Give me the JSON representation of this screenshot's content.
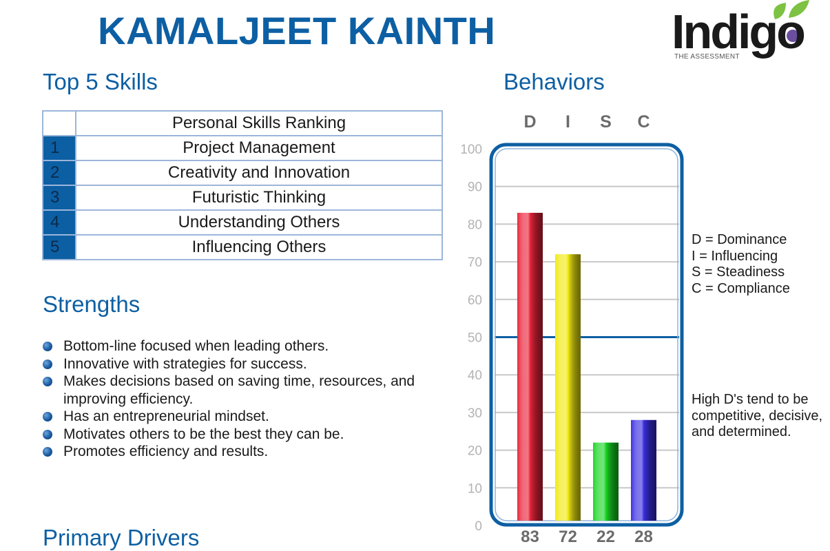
{
  "header": {
    "name": "KAMALJEET KAINTH",
    "logo_word": "Indigo",
    "logo_tagline": "THE ASSESSMENT"
  },
  "skills": {
    "heading": "Top 5 Skills",
    "column_header": "Personal Skills Ranking",
    "items": [
      {
        "rank": "1",
        "label": "Project Management"
      },
      {
        "rank": "2",
        "label": "Creativity and Innovation"
      },
      {
        "rank": "3",
        "label": "Futuristic Thinking"
      },
      {
        "rank": "4",
        "label": "Understanding Others"
      },
      {
        "rank": "5",
        "label": "Influencing Others"
      }
    ]
  },
  "strengths": {
    "heading": "Strengths",
    "items": [
      "Bottom-line focused when leading others.",
      "Innovative with strategies for success.",
      "Makes decisions based on saving time, resources, and improving efficiency.",
      "Has an entrepreneurial mindset.",
      "Motivates others to be the best they can be.",
      "Promotes efficiency and results."
    ]
  },
  "drivers": {
    "heading": "Primary Drivers"
  },
  "behaviors": {
    "heading": "Behaviors",
    "legend": [
      "D = Dominance",
      "I = Influencing",
      "S = Steadiness",
      "C = Compliance"
    ],
    "note": "High D's tend to be competitive, decisive, and determined."
  },
  "chart_data": {
    "type": "bar",
    "categories": [
      "D",
      "I",
      "S",
      "C"
    ],
    "values": [
      83,
      72,
      22,
      28
    ],
    "ylim": [
      0,
      100
    ],
    "yticks": [
      0,
      10,
      20,
      30,
      40,
      50,
      60,
      70,
      80,
      90,
      100
    ],
    "reference_line": 50,
    "grid": true,
    "bar_colors": [
      "#e8233a",
      "#f2ea12",
      "#19d625",
      "#3b2ee0"
    ],
    "frame_color": "#0d5fa3"
  }
}
